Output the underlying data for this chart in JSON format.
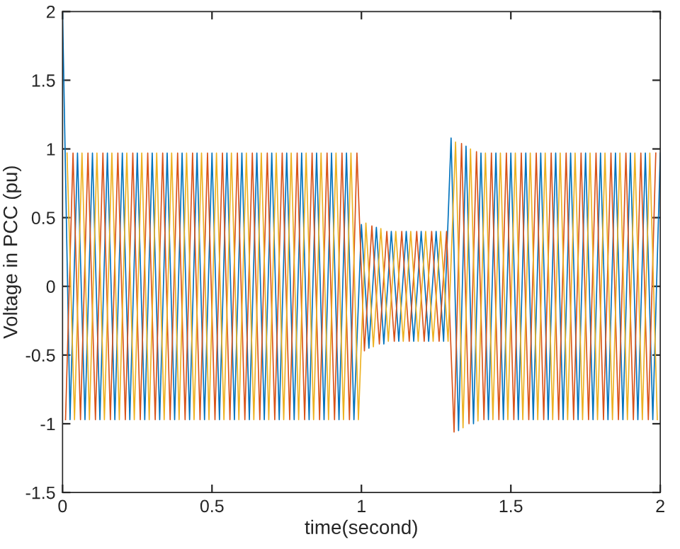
{
  "chart_data": {
    "type": "line",
    "xlabel": "time(second)",
    "ylabel": "Voltage in PCC (pu)",
    "xlim": [
      0,
      2
    ],
    "ylim": [
      -1.5,
      2
    ],
    "xticks": [
      0,
      0.5,
      1,
      1.5,
      2
    ],
    "yticks": [
      -1.5,
      -1,
      -0.5,
      0,
      0.5,
      1,
      1.5,
      2
    ],
    "grid": false,
    "marker": "none",
    "line_style": "solid",
    "series": [
      {
        "color": "#0072bd",
        "x": [
          0,
          0.025,
          0.05,
          0.075,
          0.1,
          0.125,
          0.15,
          0.175,
          0.2,
          0.225,
          0.25,
          0.275,
          0.3,
          0.325,
          0.35,
          0.375,
          0.4,
          0.425,
          0.45,
          0.475,
          0.5,
          0.525,
          0.55,
          0.575,
          0.6,
          0.625,
          0.65,
          0.675,
          0.7,
          0.725,
          0.75,
          0.775,
          0.8,
          0.825,
          0.85,
          0.875,
          0.9,
          0.925,
          0.95,
          0.975,
          1,
          1.025,
          1.05,
          1.075,
          1.1,
          1.125,
          1.15,
          1.175,
          1.2,
          1.225,
          1.25,
          1.275,
          1.3,
          1.325,
          1.35,
          1.375,
          1.4,
          1.425,
          1.45,
          1.475,
          1.5,
          1.525,
          1.55,
          1.575,
          1.6,
          1.625,
          1.65,
          1.675,
          1.7,
          1.725,
          1.75,
          1.775,
          1.8,
          1.825,
          1.85,
          1.875,
          1.9,
          1.925,
          1.95,
          1.975,
          2
        ],
        "values": [
          2,
          -0.97,
          0.97,
          -0.97,
          0.97,
          -0.97,
          0.97,
          -0.97,
          0.97,
          -0.97,
          0.97,
          -0.97,
          0.97,
          -0.97,
          0.97,
          -0.97,
          0.97,
          -0.97,
          0.97,
          -0.97,
          0.97,
          -0.97,
          0.97,
          -0.97,
          0.97,
          -0.97,
          0.97,
          -0.97,
          0.97,
          -0.97,
          0.97,
          -0.97,
          0.97,
          -0.97,
          0.97,
          -0.97,
          0.97,
          -0.97,
          0.97,
          -0.97,
          0.45,
          -0.45,
          0.43,
          -0.42,
          0.4,
          -0.4,
          0.4,
          -0.4,
          0.4,
          -0.4,
          0.4,
          -0.4,
          1.08,
          -1.05,
          1.02,
          -1.0,
          0.97,
          -0.97,
          0.97,
          -0.97,
          0.97,
          -0.97,
          0.97,
          -0.97,
          0.97,
          -0.97,
          0.97,
          -0.97,
          0.97,
          -0.97,
          0.97,
          -0.97,
          0.97,
          -0.97,
          0.97,
          -0.97,
          0.97,
          -0.97,
          0.97,
          -0.97,
          0.97
        ]
      },
      {
        "color": "#d95319",
        "x": [
          0.01,
          0.035,
          0.06,
          0.085,
          0.11,
          0.135,
          0.16,
          0.185,
          0.21,
          0.235,
          0.26,
          0.285,
          0.31,
          0.335,
          0.36,
          0.385,
          0.41,
          0.435,
          0.46,
          0.485,
          0.51,
          0.535,
          0.56,
          0.585,
          0.61,
          0.635,
          0.66,
          0.685,
          0.71,
          0.735,
          0.76,
          0.785,
          0.81,
          0.835,
          0.86,
          0.885,
          0.91,
          0.935,
          0.96,
          0.985,
          1.01,
          1.035,
          1.06,
          1.085,
          1.11,
          1.135,
          1.16,
          1.185,
          1.21,
          1.235,
          1.26,
          1.285,
          1.31,
          1.335,
          1.36,
          1.385,
          1.41,
          1.435,
          1.46,
          1.485,
          1.51,
          1.535,
          1.56,
          1.585,
          1.61,
          1.635,
          1.66,
          1.685,
          1.71,
          1.735,
          1.76,
          1.785,
          1.81,
          1.835,
          1.86,
          1.885,
          1.91,
          1.935,
          1.96,
          1.985
        ],
        "values": [
          -0.97,
          0.97,
          -0.97,
          0.97,
          -0.97,
          0.97,
          -0.97,
          0.97,
          -0.97,
          0.97,
          -0.97,
          0.97,
          -0.97,
          0.97,
          -0.97,
          0.97,
          -0.97,
          0.97,
          -0.97,
          0.97,
          -0.97,
          0.97,
          -0.97,
          0.97,
          -0.97,
          0.97,
          -0.97,
          0.97,
          -0.97,
          0.97,
          -0.97,
          0.97,
          -0.97,
          0.97,
          -0.97,
          0.97,
          -0.97,
          0.97,
          -0.97,
          0.97,
          -0.47,
          0.44,
          -0.42,
          0.4,
          -0.4,
          0.4,
          -0.4,
          0.4,
          -0.4,
          0.4,
          -0.4,
          0.4,
          -1.06,
          1.04,
          -1.0,
          0.98,
          -0.97,
          0.97,
          -0.97,
          0.97,
          -0.97,
          0.97,
          -0.97,
          0.97,
          -0.97,
          0.97,
          -0.97,
          0.97,
          -0.97,
          0.97,
          -0.97,
          0.97,
          -0.97,
          0.97,
          -0.97,
          0.97,
          -0.97,
          0.97,
          -0.97,
          0.97
        ]
      },
      {
        "color": "#edb120",
        "x": [
          0.015,
          0.04,
          0.065,
          0.09,
          0.115,
          0.14,
          0.165,
          0.19,
          0.215,
          0.24,
          0.265,
          0.29,
          0.315,
          0.34,
          0.365,
          0.39,
          0.415,
          0.44,
          0.465,
          0.49,
          0.515,
          0.54,
          0.565,
          0.59,
          0.615,
          0.64,
          0.665,
          0.69,
          0.715,
          0.74,
          0.765,
          0.79,
          0.815,
          0.84,
          0.865,
          0.89,
          0.915,
          0.94,
          0.965,
          0.99,
          1.015,
          1.04,
          1.065,
          1.09,
          1.115,
          1.14,
          1.165,
          1.19,
          1.215,
          1.24,
          1.265,
          1.29,
          1.315,
          1.34,
          1.365,
          1.39,
          1.415,
          1.44,
          1.465,
          1.49,
          1.515,
          1.54,
          1.565,
          1.59,
          1.615,
          1.64,
          1.665,
          1.69,
          1.715,
          1.74,
          1.765,
          1.79,
          1.815,
          1.84,
          1.865,
          1.89,
          1.915,
          1.94,
          1.965,
          1.99
        ],
        "values": [
          0.97,
          -0.97,
          0.97,
          -0.97,
          0.97,
          -0.97,
          0.97,
          -0.97,
          0.97,
          -0.97,
          0.97,
          -0.97,
          0.97,
          -0.97,
          0.97,
          -0.97,
          0.97,
          -0.97,
          0.97,
          -0.97,
          0.97,
          -0.97,
          0.97,
          -0.97,
          0.97,
          -0.97,
          0.97,
          -0.97,
          0.97,
          -0.97,
          0.97,
          -0.97,
          0.97,
          -0.97,
          0.97,
          -0.97,
          0.97,
          -0.97,
          0.97,
          -0.97,
          0.46,
          -0.44,
          0.42,
          -0.4,
          0.4,
          -0.4,
          0.4,
          -0.4,
          0.4,
          -0.4,
          0.4,
          -0.4,
          1.05,
          -1.03,
          1.0,
          -0.98,
          0.97,
          -0.97,
          0.97,
          -0.97,
          0.97,
          -0.97,
          0.97,
          -0.97,
          0.97,
          -0.97,
          0.97,
          -0.97,
          0.97,
          -0.97,
          0.97,
          -0.97,
          0.97,
          -0.97,
          0.97,
          -0.97,
          0.97,
          -0.97,
          0.97,
          -0.97
        ]
      }
    ]
  }
}
